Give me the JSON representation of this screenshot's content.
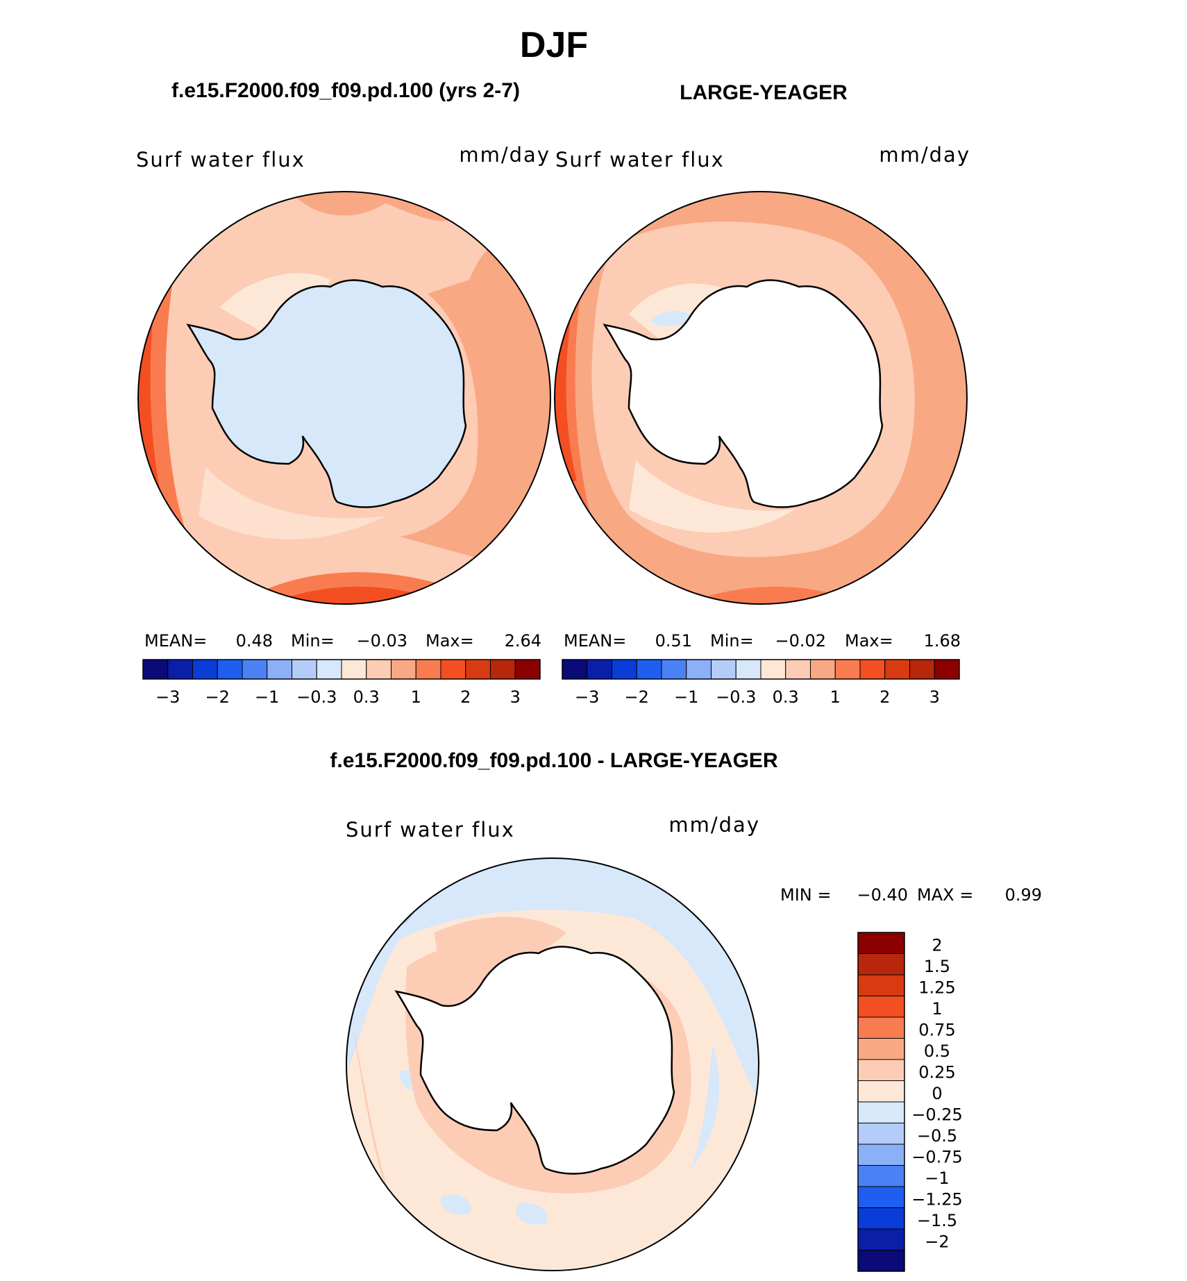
{
  "figure": {
    "season": "DJF",
    "panel_left_title": "f.e15.F2000.f09_f09.pd.100 (yrs 2-7)",
    "panel_right_title": "LARGE-YEAGER",
    "panel_diff_title": "f.e15.F2000.f09_f09.pd.100 - LARGE-YEAGER"
  },
  "panels": [
    {
      "variable": "Surf water flux",
      "units": "mm/day",
      "mean_label": "MEAN=",
      "mean": "0.48",
      "min_label": "Min=",
      "min": "−0.03",
      "max_label": "Max=",
      "max": "2.64"
    },
    {
      "variable": "Surf water flux",
      "units": "mm/day",
      "mean_label": "MEAN=",
      "mean": "0.51",
      "min_label": "Min=",
      "min": "−0.02",
      "max_label": "Max=",
      "max": "1.68"
    }
  ],
  "diff_panel": {
    "variable": "Surf water flux",
    "units": "mm/day",
    "min_label": "MIN =",
    "min": "−0.40",
    "max_label": "MAX =",
    "max": "0.99"
  },
  "colorbar_top": {
    "colors": [
      "#0a0a78",
      "#0b1ea8",
      "#0a3cd8",
      "#1e5ef0",
      "#4a82f5",
      "#8cb0f8",
      "#b4ccf8",
      "#d6e8fa",
      "#fde8d8",
      "#fcccb4",
      "#f9a884",
      "#f97c50",
      "#f34f22",
      "#d83a12",
      "#b8260c",
      "#8c0000"
    ],
    "labels": [
      "−3",
      "−2",
      "−1",
      "−0.3",
      "0.3",
      "1",
      "2",
      "3"
    ]
  },
  "colorbar_diff": {
    "colors": [
      "#8c0000",
      "#b8260c",
      "#d83a12",
      "#f34f22",
      "#f97c50",
      "#f9a884",
      "#fcccb4",
      "#fde8d8",
      "#d6e8fa",
      "#b4ccf8",
      "#8cb0f8",
      "#4a82f5",
      "#1e5ef0",
      "#0a3cd8",
      "#0b1ea8",
      "#0a0a78"
    ],
    "labels": [
      "2",
      "1.5",
      "1.25",
      "1",
      "0.75",
      "0.5",
      "0.25",
      "0",
      "−0.25",
      "−0.5",
      "−0.75",
      "−1",
      "−1.25",
      "−1.5",
      "−2"
    ]
  }
}
